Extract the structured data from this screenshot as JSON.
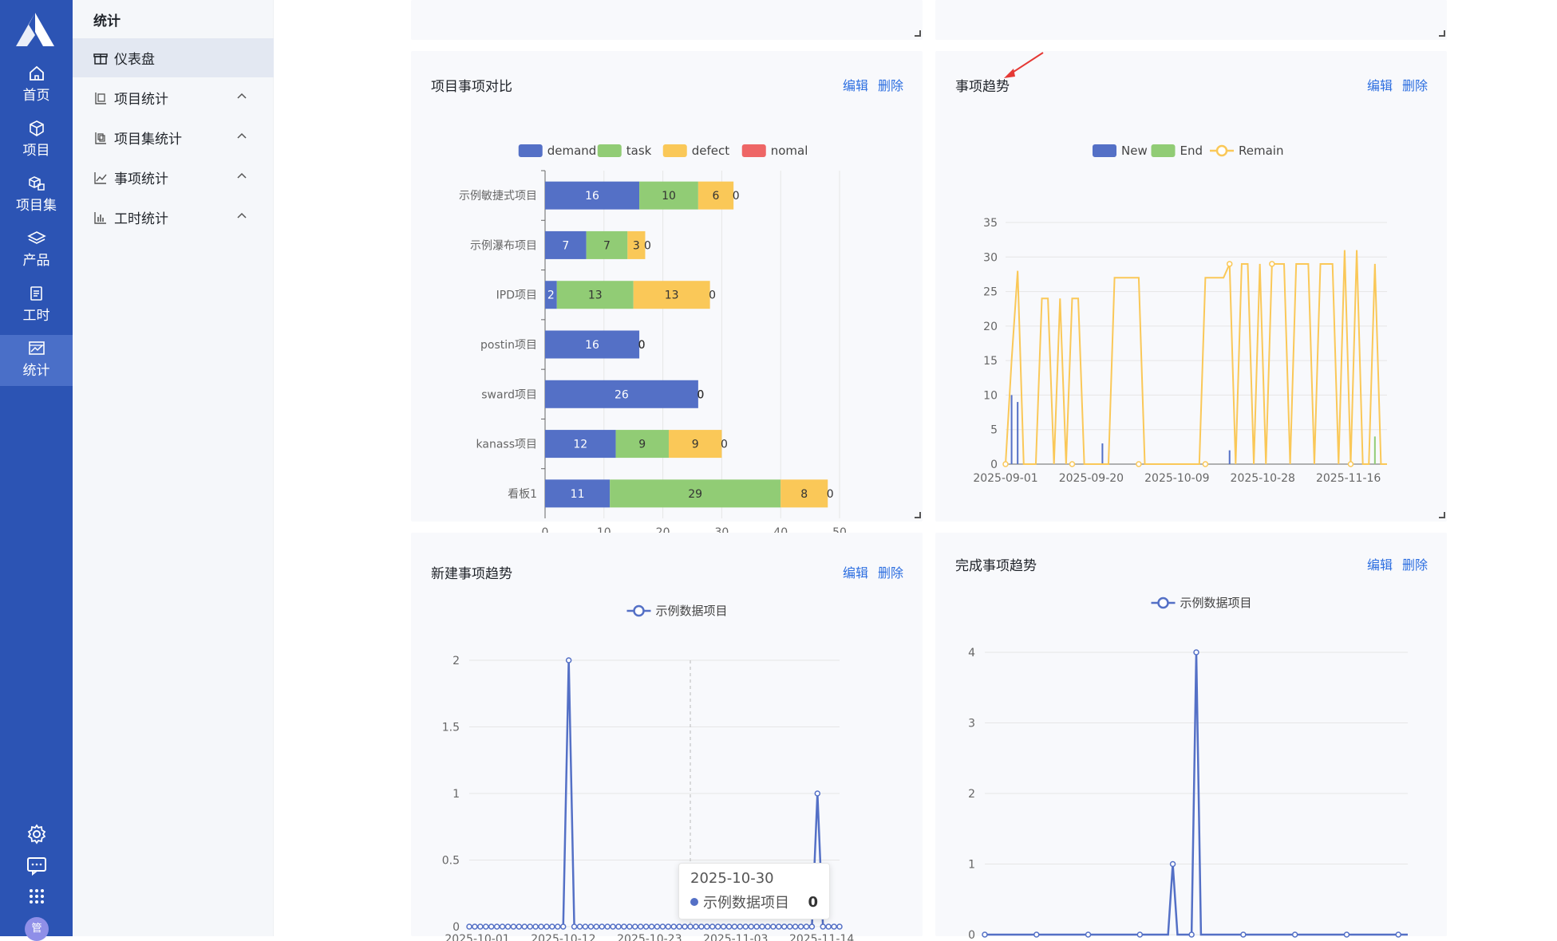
{
  "rail": {
    "items": [
      {
        "label": "首页",
        "icon": "home-icon"
      },
      {
        "label": "项目",
        "icon": "cube-icon"
      },
      {
        "label": "项目集",
        "icon": "cubes-icon"
      },
      {
        "label": "产品",
        "icon": "layers-icon"
      },
      {
        "label": "工时",
        "icon": "document-icon"
      },
      {
        "label": "统计",
        "icon": "picture-chart-icon"
      }
    ],
    "avatar": "管"
  },
  "subnav": {
    "title": "统计",
    "items": [
      {
        "label": "仪表盘"
      },
      {
        "label": "项目统计"
      },
      {
        "label": "项目集统计"
      },
      {
        "label": "事项统计"
      },
      {
        "label": "工时统计"
      }
    ]
  },
  "cards": {
    "edit_label": "编辑",
    "delete_label": "删除",
    "compare_title": "项目事项对比",
    "trend_title": "事项趋势",
    "new_trend_title": "新建事项趋势",
    "done_trend_title": "完成事项趋势"
  },
  "tooltip": {
    "date": "2025-10-30",
    "series": "示例数据项目",
    "value": "0"
  },
  "chart_data": [
    {
      "type": "bar",
      "orientation": "horizontal",
      "stacked": true,
      "categories": [
        "示例敏捷式项目",
        "示例瀑布项目",
        "IPD项目",
        "postin项目",
        "sward项目",
        "kanass项目",
        "看板1"
      ],
      "series": [
        {
          "name": "demand",
          "color": "#5470c6",
          "values": [
            16,
            7,
            2,
            16,
            26,
            12,
            11
          ]
        },
        {
          "name": "task",
          "color": "#91cc75",
          "values": [
            10,
            7,
            13,
            0,
            0,
            9,
            29
          ]
        },
        {
          "name": "defect",
          "color": "#fac858",
          "values": [
            6,
            3,
            13,
            0,
            0,
            9,
            8
          ]
        },
        {
          "name": "nomal",
          "color": "#ee6666",
          "values": [
            0,
            0,
            0,
            0,
            0,
            0,
            0
          ]
        }
      ],
      "xticks": [
        "0",
        "10",
        "20",
        "30",
        "40",
        "50"
      ],
      "xlim": [
        0,
        50
      ],
      "legend": "top-center",
      "grid": true
    },
    {
      "type": "line",
      "series": [
        {
          "name": "New",
          "color": "#5470c6"
        },
        {
          "name": "End",
          "color": "#91cc75"
        },
        {
          "name": "Remain",
          "color": "#fac858",
          "points": [
            [
              0,
              0
            ],
            [
              1,
              15
            ],
            [
              2,
              28
            ],
            [
              3,
              0
            ],
            [
              5,
              0
            ],
            [
              6,
              24
            ],
            [
              7,
              24
            ],
            [
              8,
              0
            ],
            [
              9,
              24
            ],
            [
              10,
              0
            ],
            [
              11,
              24
            ],
            [
              12,
              24
            ],
            [
              13,
              0
            ],
            [
              17,
              0
            ],
            [
              18,
              27
            ],
            [
              19,
              27
            ],
            [
              20,
              27
            ],
            [
              21,
              27
            ],
            [
              22,
              27
            ],
            [
              23,
              0
            ],
            [
              28,
              0
            ],
            [
              32,
              0
            ],
            [
              33,
              27
            ],
            [
              34,
              27
            ],
            [
              35,
              27
            ],
            [
              36,
              27
            ],
            [
              37,
              29
            ],
            [
              38,
              0
            ],
            [
              39,
              29
            ],
            [
              40,
              29
            ],
            [
              41,
              0
            ],
            [
              42,
              29
            ],
            [
              43,
              0
            ],
            [
              44,
              29
            ],
            [
              45,
              29
            ],
            [
              46,
              29
            ],
            [
              47,
              0
            ],
            [
              48,
              29
            ],
            [
              49,
              29
            ],
            [
              50,
              29
            ],
            [
              51,
              0
            ],
            [
              52,
              29
            ],
            [
              53,
              29
            ],
            [
              54,
              29
            ],
            [
              55,
              0
            ],
            [
              56,
              31
            ],
            [
              57,
              0
            ],
            [
              58,
              31
            ],
            [
              59,
              0
            ],
            [
              60,
              0
            ],
            [
              61,
              29
            ],
            [
              62,
              0
            ],
            [
              63,
              0
            ]
          ]
        }
      ],
      "bars_new": [
        [
          1,
          10
        ],
        [
          2,
          9
        ],
        [
          16,
          3
        ],
        [
          37,
          2
        ],
        [
          57,
          1
        ]
      ],
      "bars_end": [
        [
          61,
          4
        ]
      ],
      "xticks": [
        "2025-09-01",
        "2025-09-20",
        "2025-10-09",
        "2025-10-28",
        "2025-11-16"
      ],
      "yticks": [
        "0",
        "5",
        "10",
        "15",
        "20",
        "25",
        "30",
        "35"
      ],
      "ylim": [
        0,
        35
      ],
      "legend": "top-center"
    },
    {
      "type": "line",
      "series": [
        {
          "name": "示例数据项目",
          "color": "#5470c6",
          "values": [
            0,
            0,
            0,
            0,
            0,
            0,
            0,
            0,
            0,
            0,
            0,
            0,
            0,
            0,
            0,
            0,
            0,
            0,
            2,
            0,
            0,
            0,
            0,
            0,
            0,
            0,
            0,
            0,
            0,
            0,
            0,
            0,
            0,
            0,
            0,
            0,
            0,
            0,
            0,
            0,
            0,
            0,
            0,
            0,
            0,
            0,
            0,
            0,
            0,
            0,
            0,
            0,
            0,
            0,
            0,
            0,
            0,
            0,
            0,
            0,
            0,
            0,
            0,
            1,
            0,
            0,
            0,
            0
          ]
        }
      ],
      "xticks": [
        "2025-10-01",
        "2025-10-12",
        "2025-10-23",
        "2025-11-03",
        "2025-11-14"
      ],
      "yticks": [
        "0",
        "0.5",
        "1",
        "1.5",
        "2"
      ],
      "ylim": [
        0,
        2
      ],
      "legend": "top-center"
    },
    {
      "type": "line",
      "series": [
        {
          "name": "示例数据项目",
          "color": "#5470c6",
          "values": [
            0,
            0,
            0,
            0,
            0,
            0,
            0,
            0,
            0,
            0,
            0,
            0,
            0,
            0,
            0,
            0,
            0,
            0,
            0,
            0,
            0,
            0,
            0,
            0,
            0,
            0,
            0,
            0,
            0,
            0,
            0,
            0,
            0,
            0,
            0,
            0,
            0,
            0,
            0,
            0,
            1,
            0,
            0,
            0,
            0,
            4,
            0,
            0,
            0,
            0,
            0,
            0,
            0,
            0,
            0,
            0,
            0,
            0,
            0,
            0,
            0,
            0,
            0,
            0,
            0,
            0,
            0,
            0,
            0,
            0,
            0,
            0,
            0,
            0,
            0,
            0,
            0,
            0,
            0,
            0,
            0,
            0,
            0,
            0,
            0,
            0,
            0,
            0,
            0,
            0,
            0
          ]
        }
      ],
      "yticks": [
        "0",
        "1",
        "2",
        "3",
        "4"
      ],
      "ylim": [
        0,
        4
      ],
      "legend": "top-center"
    }
  ]
}
